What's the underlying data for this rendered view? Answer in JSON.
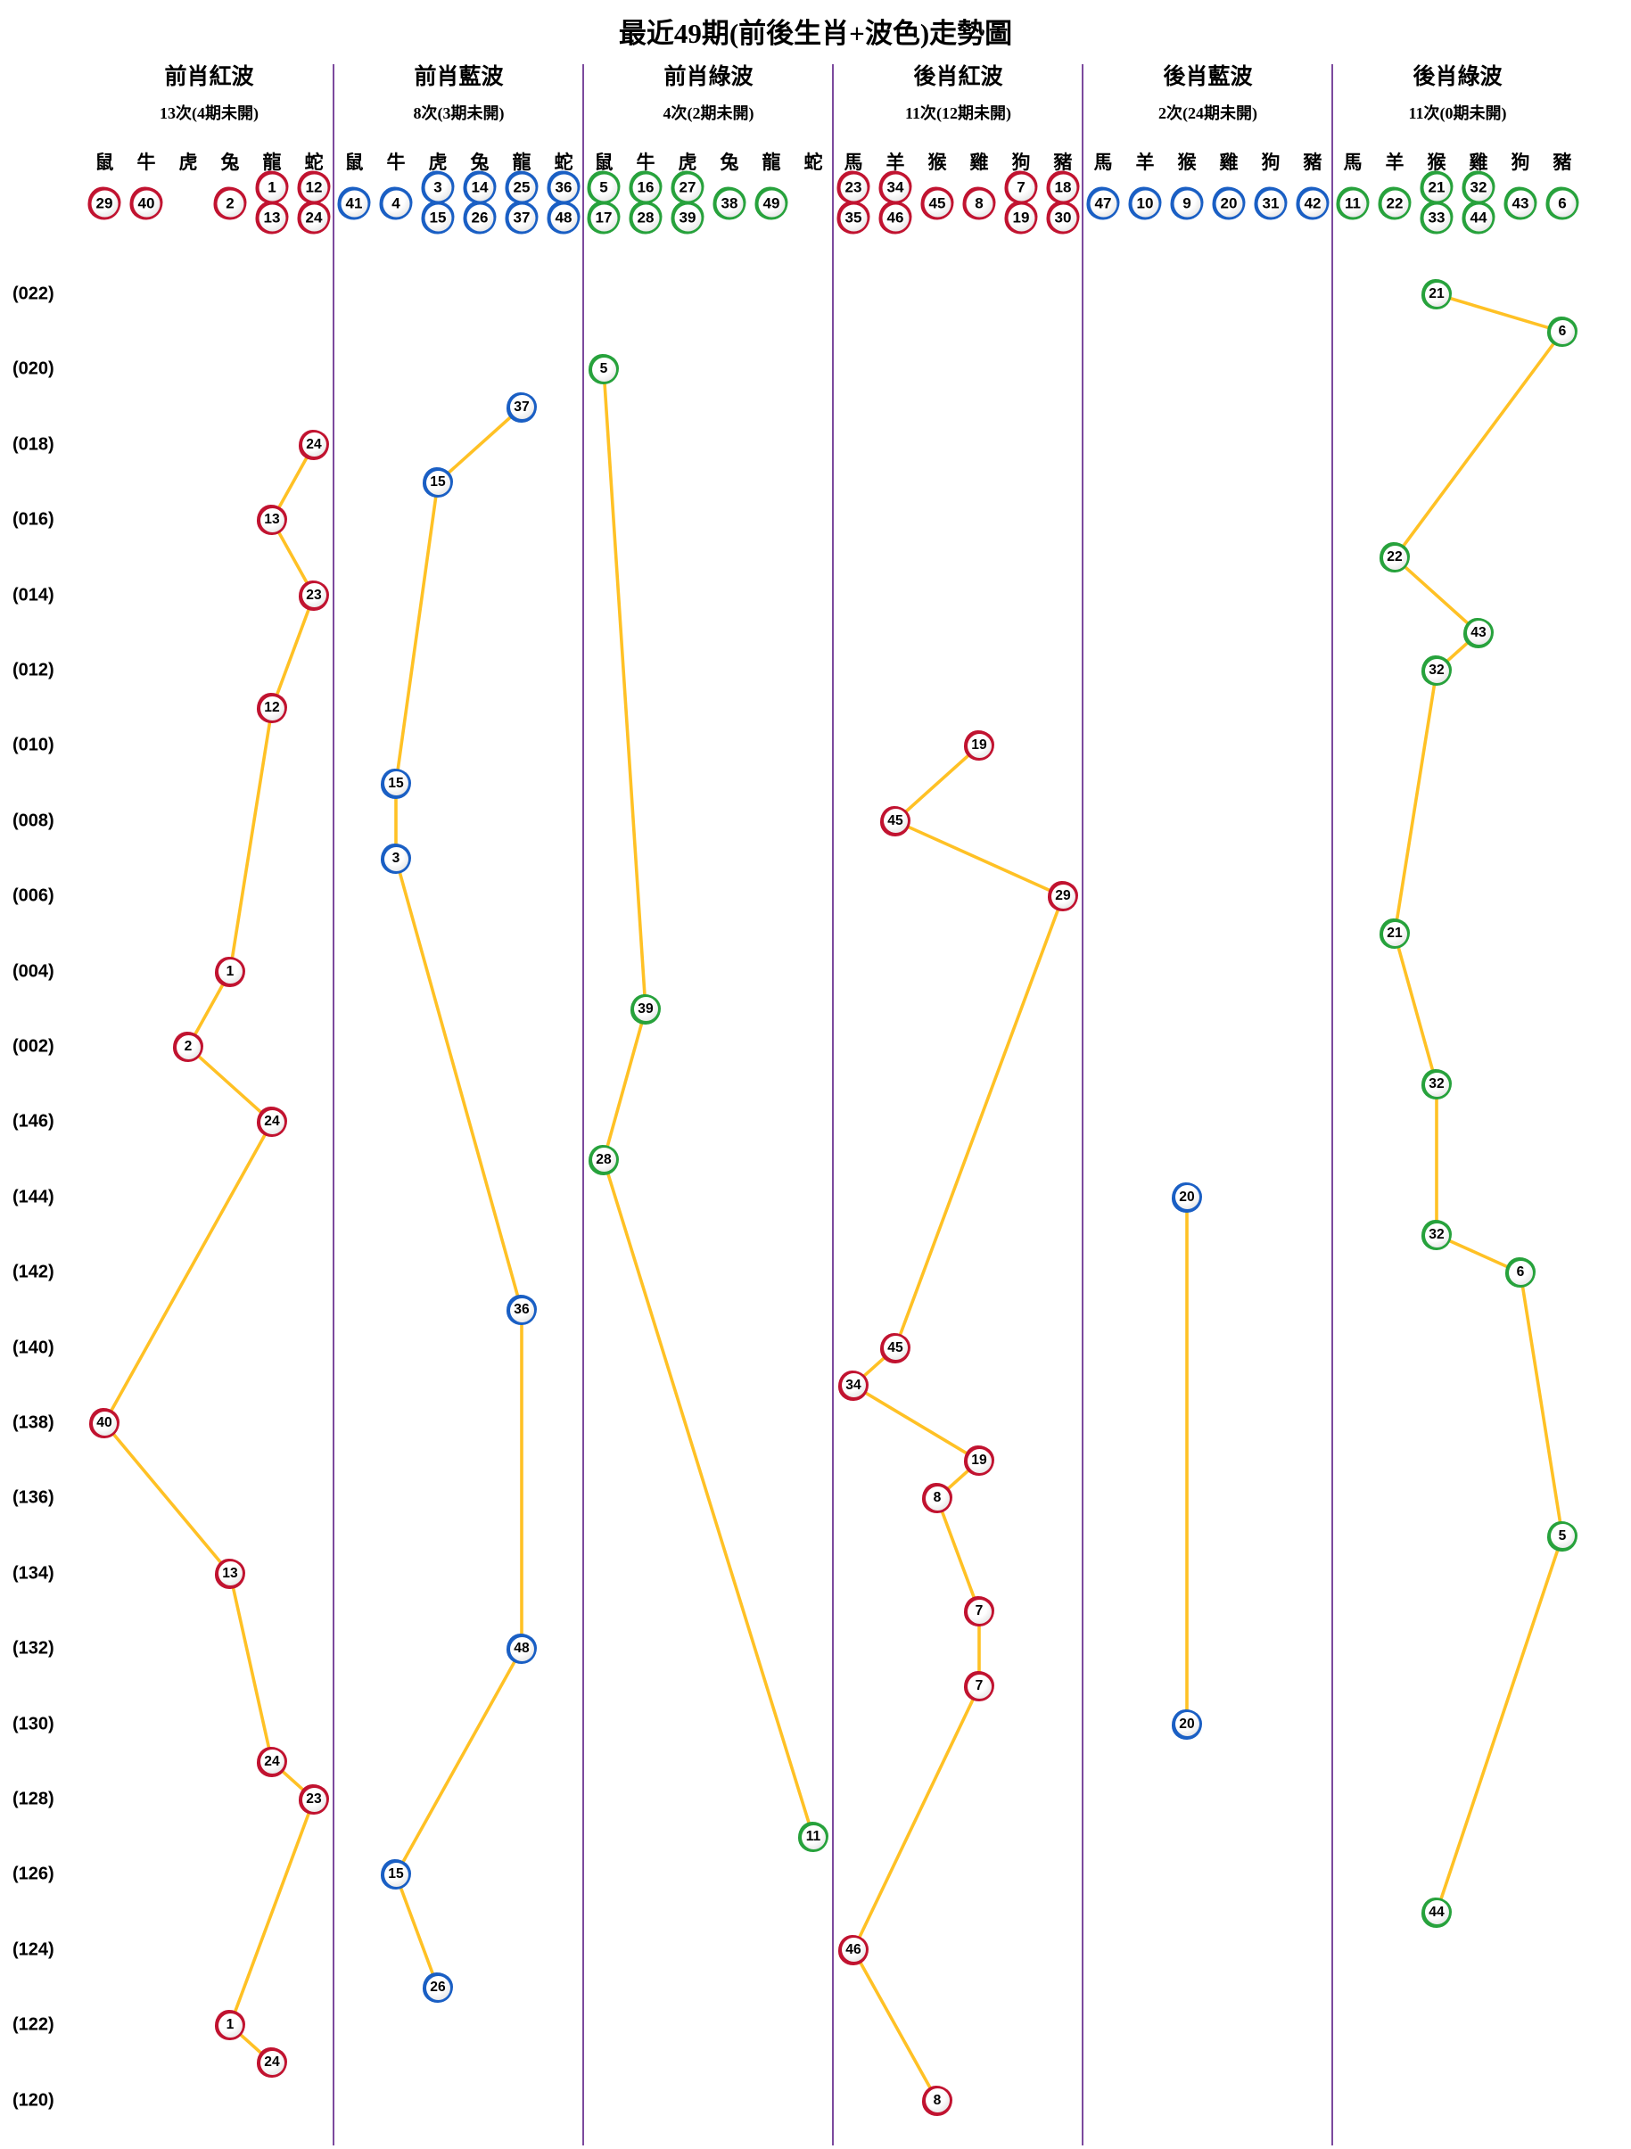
{
  "title": "最近49期(前後生肖+波色)走勢圖",
  "colors": {
    "red": "#c11330",
    "blue": "#1a5fc4",
    "green": "#27a23c",
    "line": "#ffc125",
    "divider": "#7c4a9e"
  },
  "chart_data": {
    "type": "line",
    "note": "6 panels; x = zodiac sub-column, y = draw period (one ball per period, 49 periods top to bottom)",
    "row_labels": [
      "(022)",
      "(020)",
      "(018)",
      "(016)",
      "(014)",
      "(012)",
      "(010)",
      "(008)",
      "(006)",
      "(004)",
      "(002)",
      "(146)",
      "(144)",
      "(142)",
      "(140)",
      "(138)",
      "(136)",
      "(134)",
      "(132)",
      "(130)",
      "(128)",
      "(126)",
      "(124)",
      "(122)",
      "(120)"
    ],
    "panels": [
      {
        "title": "前肖紅波",
        "count": "13次(4期未開)",
        "color_key": "red",
        "zodiacs": [
          "鼠",
          "牛",
          "虎",
          "兔",
          "龍",
          "蛇"
        ],
        "header_balls": [
          [
            "29"
          ],
          [
            "40"
          ],
          [],
          [
            "2"
          ],
          [
            "1",
            "13"
          ],
          [
            "12",
            "24"
          ]
        ],
        "points": [
          {
            "row": 4,
            "slot": 5,
            "num": "24"
          },
          {
            "row": 6,
            "slot": 4,
            "num": "13"
          },
          {
            "row": 8,
            "slot": 5,
            "num": "23"
          },
          {
            "row": 11,
            "slot": 4,
            "num": "12"
          },
          {
            "row": 18,
            "slot": 3,
            "num": "1"
          },
          {
            "row": 20,
            "slot": 2,
            "num": "2"
          },
          {
            "row": 22,
            "slot": 4,
            "num": "24"
          },
          {
            "row": 30,
            "slot": 0,
            "num": "40"
          },
          {
            "row": 34,
            "slot": 3,
            "num": "13"
          },
          {
            "row": 39,
            "slot": 4,
            "num": "24"
          },
          {
            "row": 40,
            "slot": 5,
            "num": "23"
          },
          {
            "row": 46,
            "slot": 3,
            "num": "1"
          },
          {
            "row": 47,
            "slot": 4,
            "num": "24"
          }
        ]
      },
      {
        "title": "前肖藍波",
        "count": "8次(3期未開)",
        "color_key": "blue",
        "zodiacs": [
          "鼠",
          "牛",
          "虎",
          "兔",
          "龍",
          "蛇"
        ],
        "header_balls": [
          [
            "41"
          ],
          [
            "4"
          ],
          [
            "3",
            "15"
          ],
          [
            "14",
            "26"
          ],
          [
            "25",
            "37"
          ],
          [
            "36",
            "48"
          ]
        ],
        "points": [
          {
            "row": 3,
            "slot": 4,
            "num": "37"
          },
          {
            "row": 5,
            "slot": 2,
            "num": "15"
          },
          {
            "row": 13,
            "slot": 1,
            "num": "15"
          },
          {
            "row": 15,
            "slot": 1,
            "num": "3"
          },
          {
            "row": 27,
            "slot": 4,
            "num": "36"
          },
          {
            "row": 36,
            "slot": 4,
            "num": "48"
          },
          {
            "row": 42,
            "slot": 1,
            "num": "15"
          },
          {
            "row": 45,
            "slot": 2,
            "num": "26"
          }
        ]
      },
      {
        "title": "前肖綠波",
        "count": "4次(2期未開)",
        "color_key": "green",
        "zodiacs": [
          "鼠",
          "牛",
          "虎",
          "兔",
          "龍",
          "蛇"
        ],
        "header_balls": [
          [
            "5",
            "17"
          ],
          [
            "16",
            "28"
          ],
          [
            "27",
            "39"
          ],
          [
            "38"
          ],
          [
            "49"
          ],
          []
        ],
        "points": [
          {
            "row": 2,
            "slot": 0,
            "num": "5"
          },
          {
            "row": 19,
            "slot": 1,
            "num": "39"
          },
          {
            "row": 23,
            "slot": 0,
            "num": "28"
          },
          {
            "row": 41,
            "slot": 5,
            "num": "11"
          }
        ]
      },
      {
        "title": "後肖紅波",
        "count": "11次(12期未開)",
        "color_key": "red",
        "zodiacs": [
          "馬",
          "羊",
          "猴",
          "雞",
          "狗",
          "豬"
        ],
        "header_balls": [
          [
            "23",
            "35"
          ],
          [
            "34",
            "46"
          ],
          [
            "45"
          ],
          [
            "8"
          ],
          [
            "7",
            "19"
          ],
          [
            "18",
            "30"
          ]
        ],
        "points": [
          {
            "row": 12,
            "slot": 3,
            "num": "19"
          },
          {
            "row": 14,
            "slot": 1,
            "num": "45"
          },
          {
            "row": 16,
            "slot": 5,
            "num": "29"
          },
          {
            "row": 28,
            "slot": 1,
            "num": "45"
          },
          {
            "row": 29,
            "slot": 0,
            "num": "34"
          },
          {
            "row": 31,
            "slot": 3,
            "num": "19"
          },
          {
            "row": 32,
            "slot": 2,
            "num": "8"
          },
          {
            "row": 35,
            "slot": 3,
            "num": "7"
          },
          {
            "row": 37,
            "slot": 3,
            "num": "7"
          },
          {
            "row": 44,
            "slot": 0,
            "num": "46"
          },
          {
            "row": 48,
            "slot": 2,
            "num": "8"
          }
        ]
      },
      {
        "title": "後肖藍波",
        "count": "2次(24期未開)",
        "color_key": "blue",
        "zodiacs": [
          "馬",
          "羊",
          "猴",
          "雞",
          "狗",
          "豬"
        ],
        "header_balls": [
          [
            "47"
          ],
          [
            "10"
          ],
          [
            "9"
          ],
          [
            "20"
          ],
          [
            "31"
          ],
          [
            "42"
          ]
        ],
        "points": [
          {
            "row": 24,
            "slot": 2,
            "num": "20"
          },
          {
            "row": 38,
            "slot": 2,
            "num": "20"
          }
        ]
      },
      {
        "title": "後肖綠波",
        "count": "11次(0期未開)",
        "color_key": "green",
        "zodiacs": [
          "馬",
          "羊",
          "猴",
          "雞",
          "狗",
          "豬"
        ],
        "header_balls": [
          [
            "11"
          ],
          [
            "22"
          ],
          [
            "21",
            "33"
          ],
          [
            "32",
            "44"
          ],
          [
            "43"
          ],
          [
            "6"
          ]
        ],
        "points": [
          {
            "row": 0,
            "slot": 2,
            "num": "21"
          },
          {
            "row": 1,
            "slot": 5,
            "num": "6"
          },
          {
            "row": 7,
            "slot": 1,
            "num": "22"
          },
          {
            "row": 9,
            "slot": 3,
            "num": "43"
          },
          {
            "row": 10,
            "slot": 2,
            "num": "32"
          },
          {
            "row": 17,
            "slot": 1,
            "num": "21"
          },
          {
            "row": 21,
            "slot": 2,
            "num": "32"
          },
          {
            "row": 25,
            "slot": 2,
            "num": "32"
          },
          {
            "row": 26,
            "slot": 4,
            "num": "6"
          },
          {
            "row": 33,
            "slot": 5,
            "num": "5"
          },
          {
            "row": 43,
            "slot": 2,
            "num": "44"
          }
        ]
      }
    ]
  }
}
